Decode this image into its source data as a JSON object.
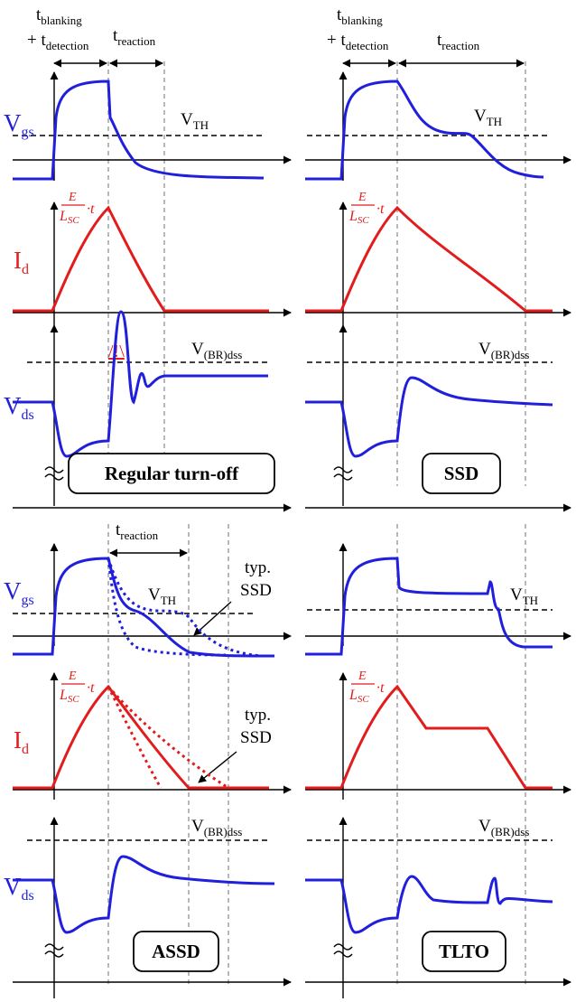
{
  "colors": {
    "vgs": "#1f1fdc",
    "id": "#e21c1c",
    "axis": "#000000",
    "guide": "#9a9a9a"
  },
  "labels": {
    "t_blanking": "t",
    "t_blanking_sub": "blanking",
    "t_detection_prefix": "+ t",
    "t_detection_sub": "detection",
    "t_reaction": "t",
    "t_reaction_sub": "reaction",
    "vgs": "V",
    "vgs_sub": "gs",
    "id": "I",
    "id_sub": "d",
    "vds": "V",
    "vds_sub": "ds",
    "vth": "V",
    "vth_sub": "TH",
    "vbr": "V",
    "vbr_sub": "(BR)dss",
    "slope_num": "E",
    "slope_den_L": "L",
    "slope_den_sub": "SC",
    "slope_t": "·t",
    "warning": "/!\\",
    "typ": "typ.",
    "ssd": "SSD"
  },
  "panels": {
    "regular": "Regular turn-off",
    "ssd": "SSD",
    "assd": "ASSD",
    "tlto": "TLTO"
  }
}
